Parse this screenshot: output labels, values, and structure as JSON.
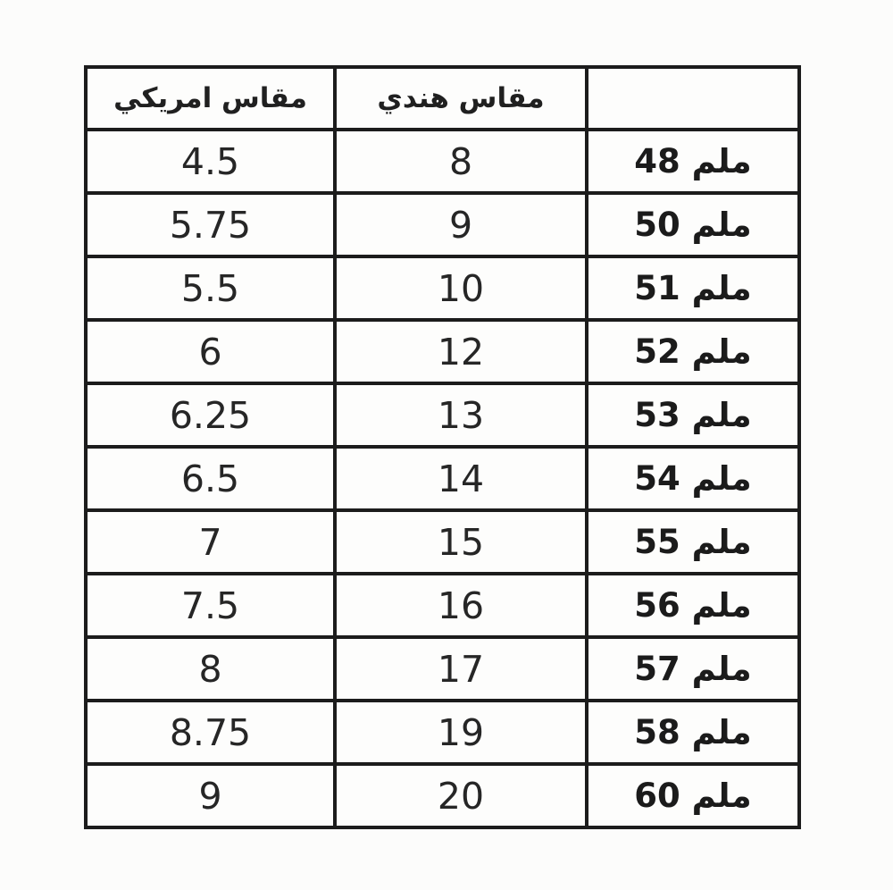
{
  "page": {
    "background_color": "#fcfcfb",
    "border_color": "#1c1c1c",
    "text_color": "#1e1e1e"
  },
  "chart_data": {
    "type": "table",
    "title": "",
    "columns": [
      "مقاس امريكي",
      "مقاس هندي",
      ""
    ],
    "rows": [
      [
        "4.5",
        "8",
        "48 ملم"
      ],
      [
        "5.75",
        "9",
        "50 ملم"
      ],
      [
        "5.5",
        "10",
        "51 ملم"
      ],
      [
        "6",
        "12",
        "52 ملم"
      ],
      [
        "6.25",
        "13",
        "53 ملم"
      ],
      [
        "6.5",
        "14",
        "54 ملم"
      ],
      [
        "7",
        "15",
        "55 ملم"
      ],
      [
        "7.5",
        "16",
        "56 ملم"
      ],
      [
        "8",
        "17",
        "57 ملم"
      ],
      [
        "8.75",
        "19",
        "58 ملم"
      ],
      [
        "9",
        "20",
        "60 ملم"
      ]
    ],
    "layout": {
      "header_spans_columns": [
        0,
        1
      ],
      "third_column_has_no_header": true,
      "grid": "on",
      "row_count": 11
    }
  }
}
